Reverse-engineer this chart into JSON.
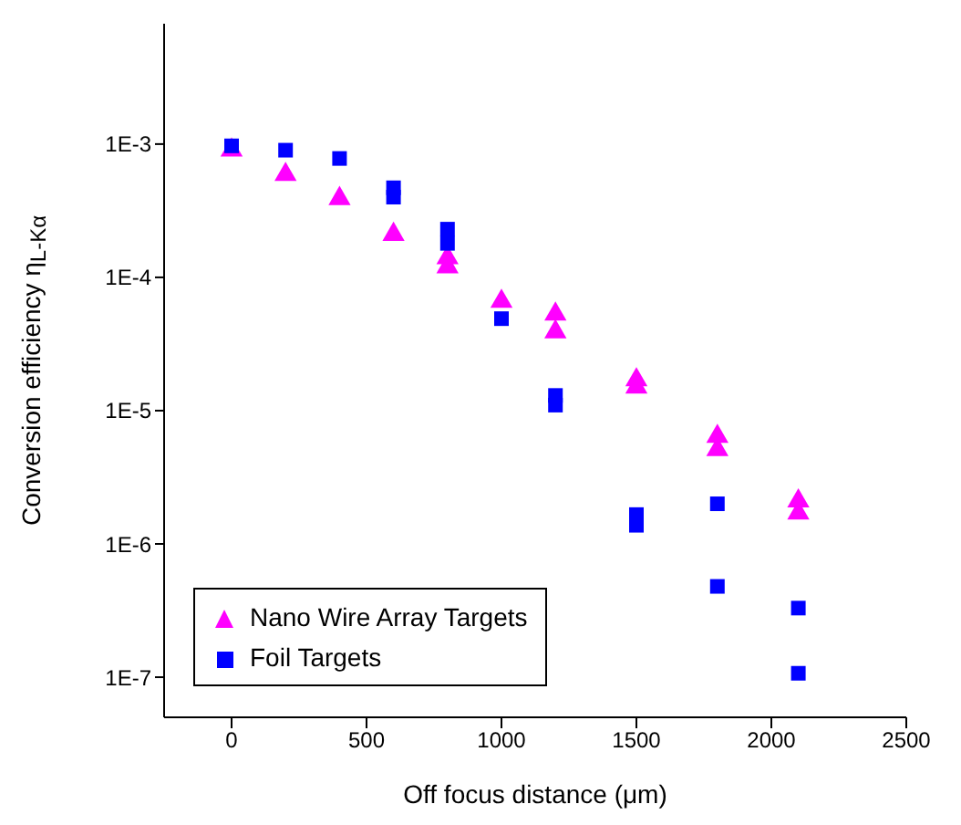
{
  "chart_data": {
    "type": "scatter",
    "xlabel": "Off focus distance (μm)",
    "ylabel": "Conversion efficiency η$_{L-Kα}$",
    "log": "y",
    "grid": false,
    "legend": "bottom left",
    "xlim": [
      -250,
      2500
    ],
    "xticks": [
      0,
      500,
      1000,
      1500,
      2000,
      2500
    ],
    "ylim": [
      5e-08,
      0.008
    ],
    "yticks": [
      {
        "value": 1e-07,
        "label": "1E-7"
      },
      {
        "value": 1e-06,
        "label": "1E-6"
      },
      {
        "value": 1e-05,
        "label": "1E-5"
      },
      {
        "value": 0.0001,
        "label": "1E-4"
      },
      {
        "value": 0.001,
        "label": "1E-3"
      }
    ],
    "series": [
      {
        "name": "Nano Wire Array Targets",
        "color": "#ff00ff",
        "marker": "triangle",
        "x": [
          0,
          200,
          400,
          600,
          800,
          800,
          1000,
          1200,
          1200,
          1500,
          1500,
          1800,
          1800,
          2100,
          2100
        ],
        "values": [
          0.0009,
          0.00059,
          0.00039,
          0.00021,
          0.00014,
          0.00012,
          6.6e-05,
          5.3e-05,
          3.9e-05,
          1.7e-05,
          1.5e-05,
          6.4e-06,
          5.1e-06,
          2.1e-06,
          1.7e-06
        ]
      },
      {
        "name": "Foil Targets",
        "color": "#0000ff",
        "marker": "square",
        "x": [
          0,
          200,
          400,
          600,
          600,
          800,
          800,
          1000,
          1200,
          1200,
          1500,
          1500,
          1800,
          1800,
          2100,
          2100
        ],
        "values": [
          0.00097,
          0.0009,
          0.00078,
          0.00047,
          0.0004,
          0.00023,
          0.00018,
          4.9e-05,
          1.3e-05,
          1.1e-05,
          1.66e-06,
          1.38e-06,
          2e-06,
          4.8e-07,
          3.3e-07,
          1.07e-07
        ]
      }
    ]
  }
}
